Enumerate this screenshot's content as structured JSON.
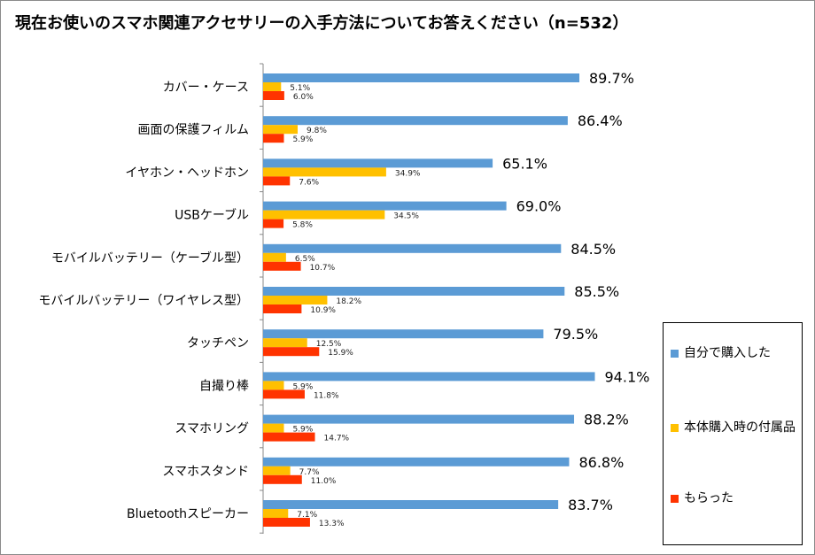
{
  "title": "現在お使いのスマホ関連アクセサリーの入手方法についてお答えください（n=532）",
  "colors": {
    "series1": "#5b9bd5",
    "series2": "#ffc000",
    "series3": "#ff3300"
  },
  "legend": [
    {
      "name": "自分で購入した",
      "color": "#5b9bd5"
    },
    {
      "name": "本体購入時の付属品",
      "color": "#ffc000"
    },
    {
      "name": "もらった",
      "color": "#ff3300"
    }
  ],
  "chart_data": {
    "type": "bar",
    "orientation": "horizontal",
    "title": "現在お使いのスマホ関連アクセサリーの入手方法についてお答えください（n=532）",
    "xlim": [
      0,
      100
    ],
    "grid": false,
    "legend_position": "right-bottom",
    "categories": [
      "カバー・ケース",
      "画面の保護フィルム",
      "イヤホン・ヘッドホン",
      "USBケーブル",
      "モバイルバッテリー（ケーブル型）",
      "モバイルバッテリー（ワイヤレス型）",
      "タッチペン",
      "自撮り棒",
      "スマホリング",
      "スマホスタンド",
      "Bluetoothスピーカー"
    ],
    "series": [
      {
        "name": "自分で購入した",
        "values": [
          89.7,
          86.4,
          65.1,
          69.0,
          84.5,
          85.5,
          79.5,
          94.1,
          88.2,
          86.8,
          83.7
        ],
        "labels": [
          "89.7%",
          "86.4%",
          "65.1%",
          "69.0%",
          "84.5%",
          "85.5%",
          "79.5%",
          "94.1%",
          "88.2%",
          "86.8%",
          "83.7%"
        ]
      },
      {
        "name": "本体購入時の付属品",
        "values": [
          5.1,
          9.8,
          34.9,
          34.5,
          6.5,
          18.2,
          12.5,
          5.9,
          5.9,
          7.7,
          7.1
        ],
        "labels": [
          "5.1%",
          "9.8%",
          "34.9%",
          "34.5%",
          "6.5%",
          "18.2%",
          "12.5%",
          "5.9%",
          "5.9%",
          "7.7%",
          "7.1%"
        ]
      },
      {
        "name": "もらった",
        "values": [
          6.0,
          5.9,
          7.6,
          5.8,
          10.7,
          10.9,
          15.9,
          11.8,
          14.7,
          11.0,
          13.3
        ],
        "labels": [
          "6.0%",
          "5.9%",
          "7.6%",
          "5.8%",
          "10.7%",
          "10.9%",
          "15.9%",
          "11.8%",
          "14.7%",
          "11.0%",
          "13.3%"
        ]
      }
    ]
  }
}
